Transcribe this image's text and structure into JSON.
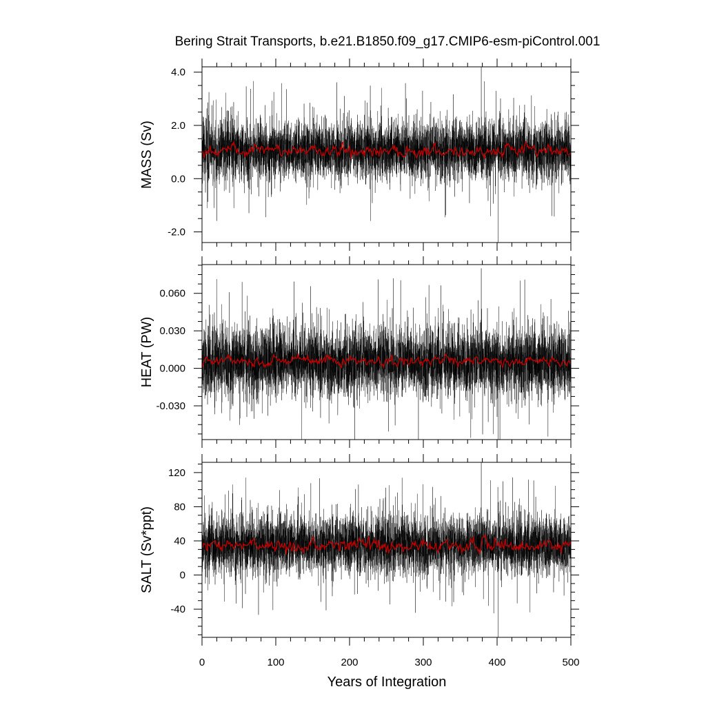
{
  "title": "Bering Strait Transports, b.e21.B1850.f09_g17.CMIP6-esm-piControl.001",
  "colors": {
    "raw_series": "#000000",
    "smoothed_series": "#c00000",
    "axis": "#000000",
    "background": "#ffffff"
  },
  "chart_data": [
    {
      "type": "line",
      "ylabel": "MASS (Sv)",
      "xlabel": "",
      "xlim": [
        0,
        500
      ],
      "ylim": [
        -2.4,
        4.2
      ],
      "xticks": [
        0,
        100,
        200,
        300,
        400,
        500
      ],
      "yticks": [
        -2.0,
        0.0,
        2.0,
        4.0
      ],
      "ytick_labels": [
        "-2.0",
        "0.0",
        "2.0",
        "4.0"
      ],
      "grid": false,
      "legend": "none",
      "series": [
        {
          "role": "monthly",
          "color": "#000000",
          "mean": 1.05,
          "amplitude": 0.55,
          "spike_max": 4.2,
          "spike_min": -2.4
        },
        {
          "role": "annual-smoothed",
          "color": "#c00000",
          "mean": 1.05,
          "amplitude": 0.12
        }
      ]
    },
    {
      "type": "line",
      "ylabel": "HEAT (PW)",
      "xlabel": "",
      "xlim": [
        0,
        500
      ],
      "ylim": [
        -0.057,
        0.083
      ],
      "xticks": [
        0,
        100,
        200,
        300,
        400,
        500
      ],
      "yticks": [
        -0.03,
        0.0,
        0.03,
        0.06
      ],
      "ytick_labels": [
        "-0.030",
        "0.000",
        "0.030",
        "0.060"
      ],
      "grid": false,
      "legend": "none",
      "series": [
        {
          "role": "monthly",
          "color": "#000000",
          "mean": 0.005,
          "amplitude": 0.014,
          "spike_max": 0.08,
          "spike_min": -0.057
        },
        {
          "role": "annual-smoothed",
          "color": "#c00000",
          "mean": 0.006,
          "amplitude": 0.002
        }
      ]
    },
    {
      "type": "line",
      "ylabel": "SALT (Sv*ppt)",
      "xlabel": "Years of Integration",
      "xlim": [
        0,
        500
      ],
      "ylim": [
        -73,
        132
      ],
      "xticks": [
        0,
        100,
        200,
        300,
        400,
        500
      ],
      "xtick_labels": [
        "0",
        "100",
        "200",
        "300",
        "400",
        "500"
      ],
      "yticks": [
        -40,
        0,
        40,
        80,
        120
      ],
      "ytick_labels": [
        "-40",
        "0",
        "40",
        "80",
        "120"
      ],
      "grid": false,
      "legend": "none",
      "series": [
        {
          "role": "monthly",
          "color": "#000000",
          "mean": 35,
          "amplitude": 17,
          "spike_max": 132,
          "spike_min": -73
        },
        {
          "role": "annual-smoothed",
          "color": "#c00000",
          "mean": 35,
          "amplitude": 4
        }
      ]
    }
  ]
}
